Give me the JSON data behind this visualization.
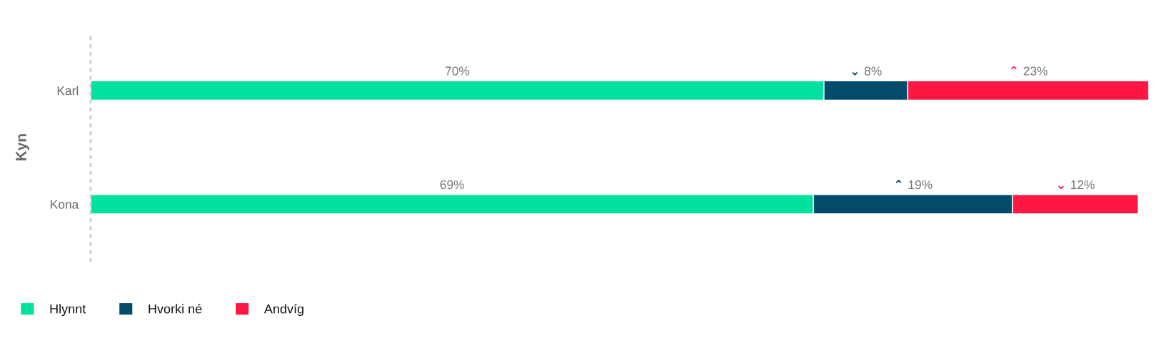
{
  "chart_data": {
    "type": "bar",
    "orientation": "horizontal",
    "stacked": true,
    "ylabel": "Kyn",
    "categories": [
      "Karl",
      "Kona"
    ],
    "series": [
      {
        "name": "Hlynnt",
        "color": "#00e09e",
        "values": [
          70,
          69
        ],
        "value_labels": [
          "70%",
          "69%"
        ]
      },
      {
        "name": "Hvorki né",
        "color": "#024b6b",
        "values": [
          8,
          19
        ],
        "value_labels": [
          "⌄ 8%",
          "⌃ 19%"
        ]
      },
      {
        "name": "Andvíg",
        "color": "#ff1744",
        "values": [
          23,
          12
        ],
        "value_labels": [
          "⌃ 23%",
          "⌄ 12%"
        ]
      }
    ],
    "legend": "bottom left",
    "tick_labels": "y"
  }
}
